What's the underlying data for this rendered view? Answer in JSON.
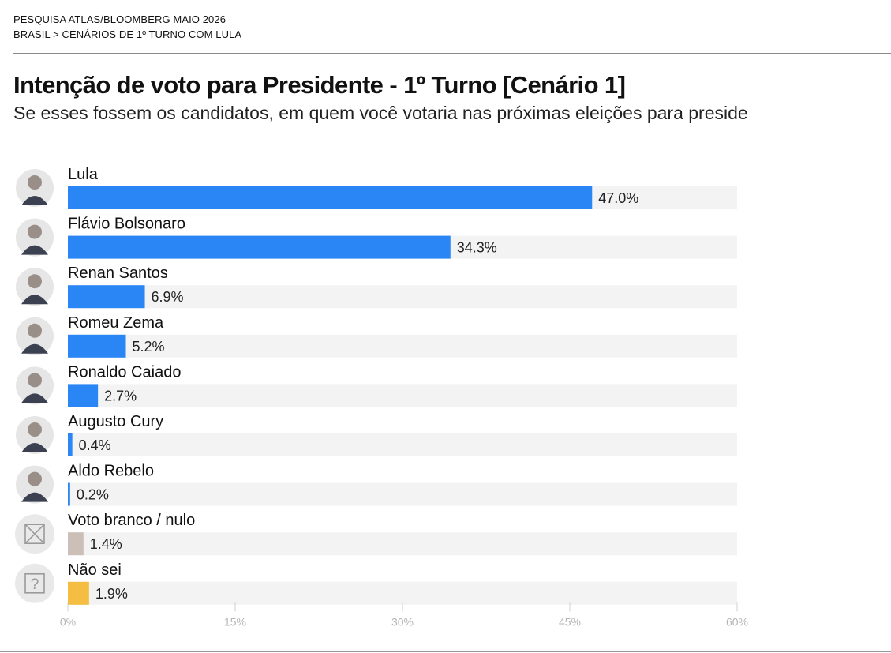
{
  "header": {
    "kicker_line1": "PESQUISA ATLAS/BLOOMBERG MAIO 2026",
    "kicker_line2": "BRASIL > CENÁRIOS DE 1º TURNO COM LULA",
    "title": "Intenção de voto para Presidente - 1º Turno [Cenário 1]",
    "subtitle": "Se esses fossem os candidatos, em quem você votaria nas próximas eleições para preside"
  },
  "colors": {
    "candidate_bar": "#2b86f5",
    "blank_null_bar": "#cbbfb8",
    "dont_know_bar": "#f5bd41",
    "track": "#f3f3f3",
    "axis_text": "#b5b5b5"
  },
  "chart_data": {
    "type": "bar",
    "orientation": "horizontal",
    "categories": [
      "Lula",
      "Flávio Bolsonaro",
      "Renan Santos",
      "Romeu Zema",
      "Ronaldo Caiado",
      "Augusto Cury",
      "Aldo Rebelo",
      "Voto branco / nulo",
      "Não sei"
    ],
    "values": [
      47.0,
      34.3,
      6.9,
      5.2,
      2.7,
      0.4,
      0.2,
      1.4,
      1.9
    ],
    "value_labels": [
      "47.0%",
      "34.3%",
      "6.9%",
      "5.2%",
      "2.7%",
      "0.4%",
      "0.2%",
      "1.4%",
      "1.9%"
    ],
    "bar_colors": [
      "#2b86f5",
      "#2b86f5",
      "#2b86f5",
      "#2b86f5",
      "#2b86f5",
      "#2b86f5",
      "#2b86f5",
      "#cbbfb8",
      "#f5bd41"
    ],
    "icons": [
      "avatar-icon",
      "avatar-icon",
      "avatar-icon",
      "avatar-icon",
      "avatar-icon",
      "avatar-icon",
      "avatar-icon",
      "x-box-icon",
      "question-box-icon"
    ],
    "xlim": [
      0,
      60
    ],
    "xticks": [
      0,
      15,
      30,
      45,
      60
    ],
    "xtick_labels": [
      "0%",
      "15%",
      "30%",
      "45%",
      "60%"
    ]
  }
}
